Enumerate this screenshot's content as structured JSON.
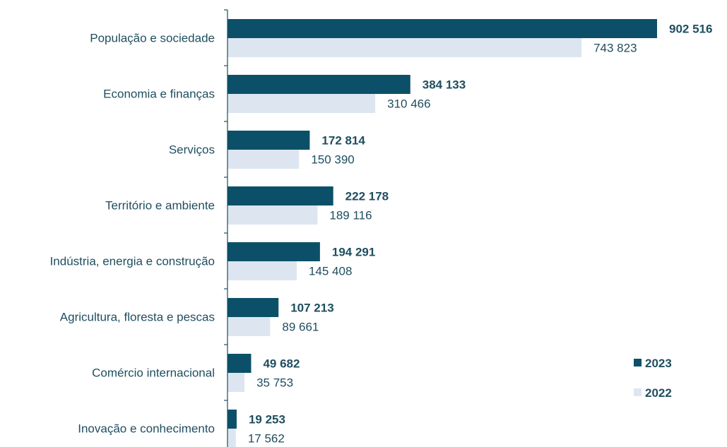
{
  "chart_data": {
    "type": "bar",
    "orientation": "horizontal",
    "categories": [
      "População e sociedade",
      "Economia e finanças",
      "Serviços",
      "Território e ambiente",
      "Indústria, energia e construção",
      "Agricultura, floresta e pescas",
      "Comércio internacional",
      "Inovação e conhecimento"
    ],
    "series": [
      {
        "name": "2023",
        "color": "#0b5068",
        "values": [
          902516,
          384133,
          172814,
          222178,
          194291,
          107213,
          49682,
          19253
        ],
        "labels": [
          "902 516",
          "384 133",
          "172 814",
          "222 178",
          "194 291",
          "107 213",
          "49 682",
          "19 253"
        ]
      },
      {
        "name": "2022",
        "color": "#dde6f0",
        "values": [
          743823,
          310466,
          150390,
          189116,
          145408,
          89661,
          35753,
          17562
        ],
        "labels": [
          "743 823",
          "310 466",
          "150 390",
          "189 116",
          "145 408",
          "89 661",
          "35 753",
          "17 562"
        ]
      }
    ],
    "title": "",
    "xlabel": "",
    "ylabel": "",
    "xlim": [
      0,
      902516
    ],
    "grid": false,
    "legend_position": "bottom-right"
  }
}
